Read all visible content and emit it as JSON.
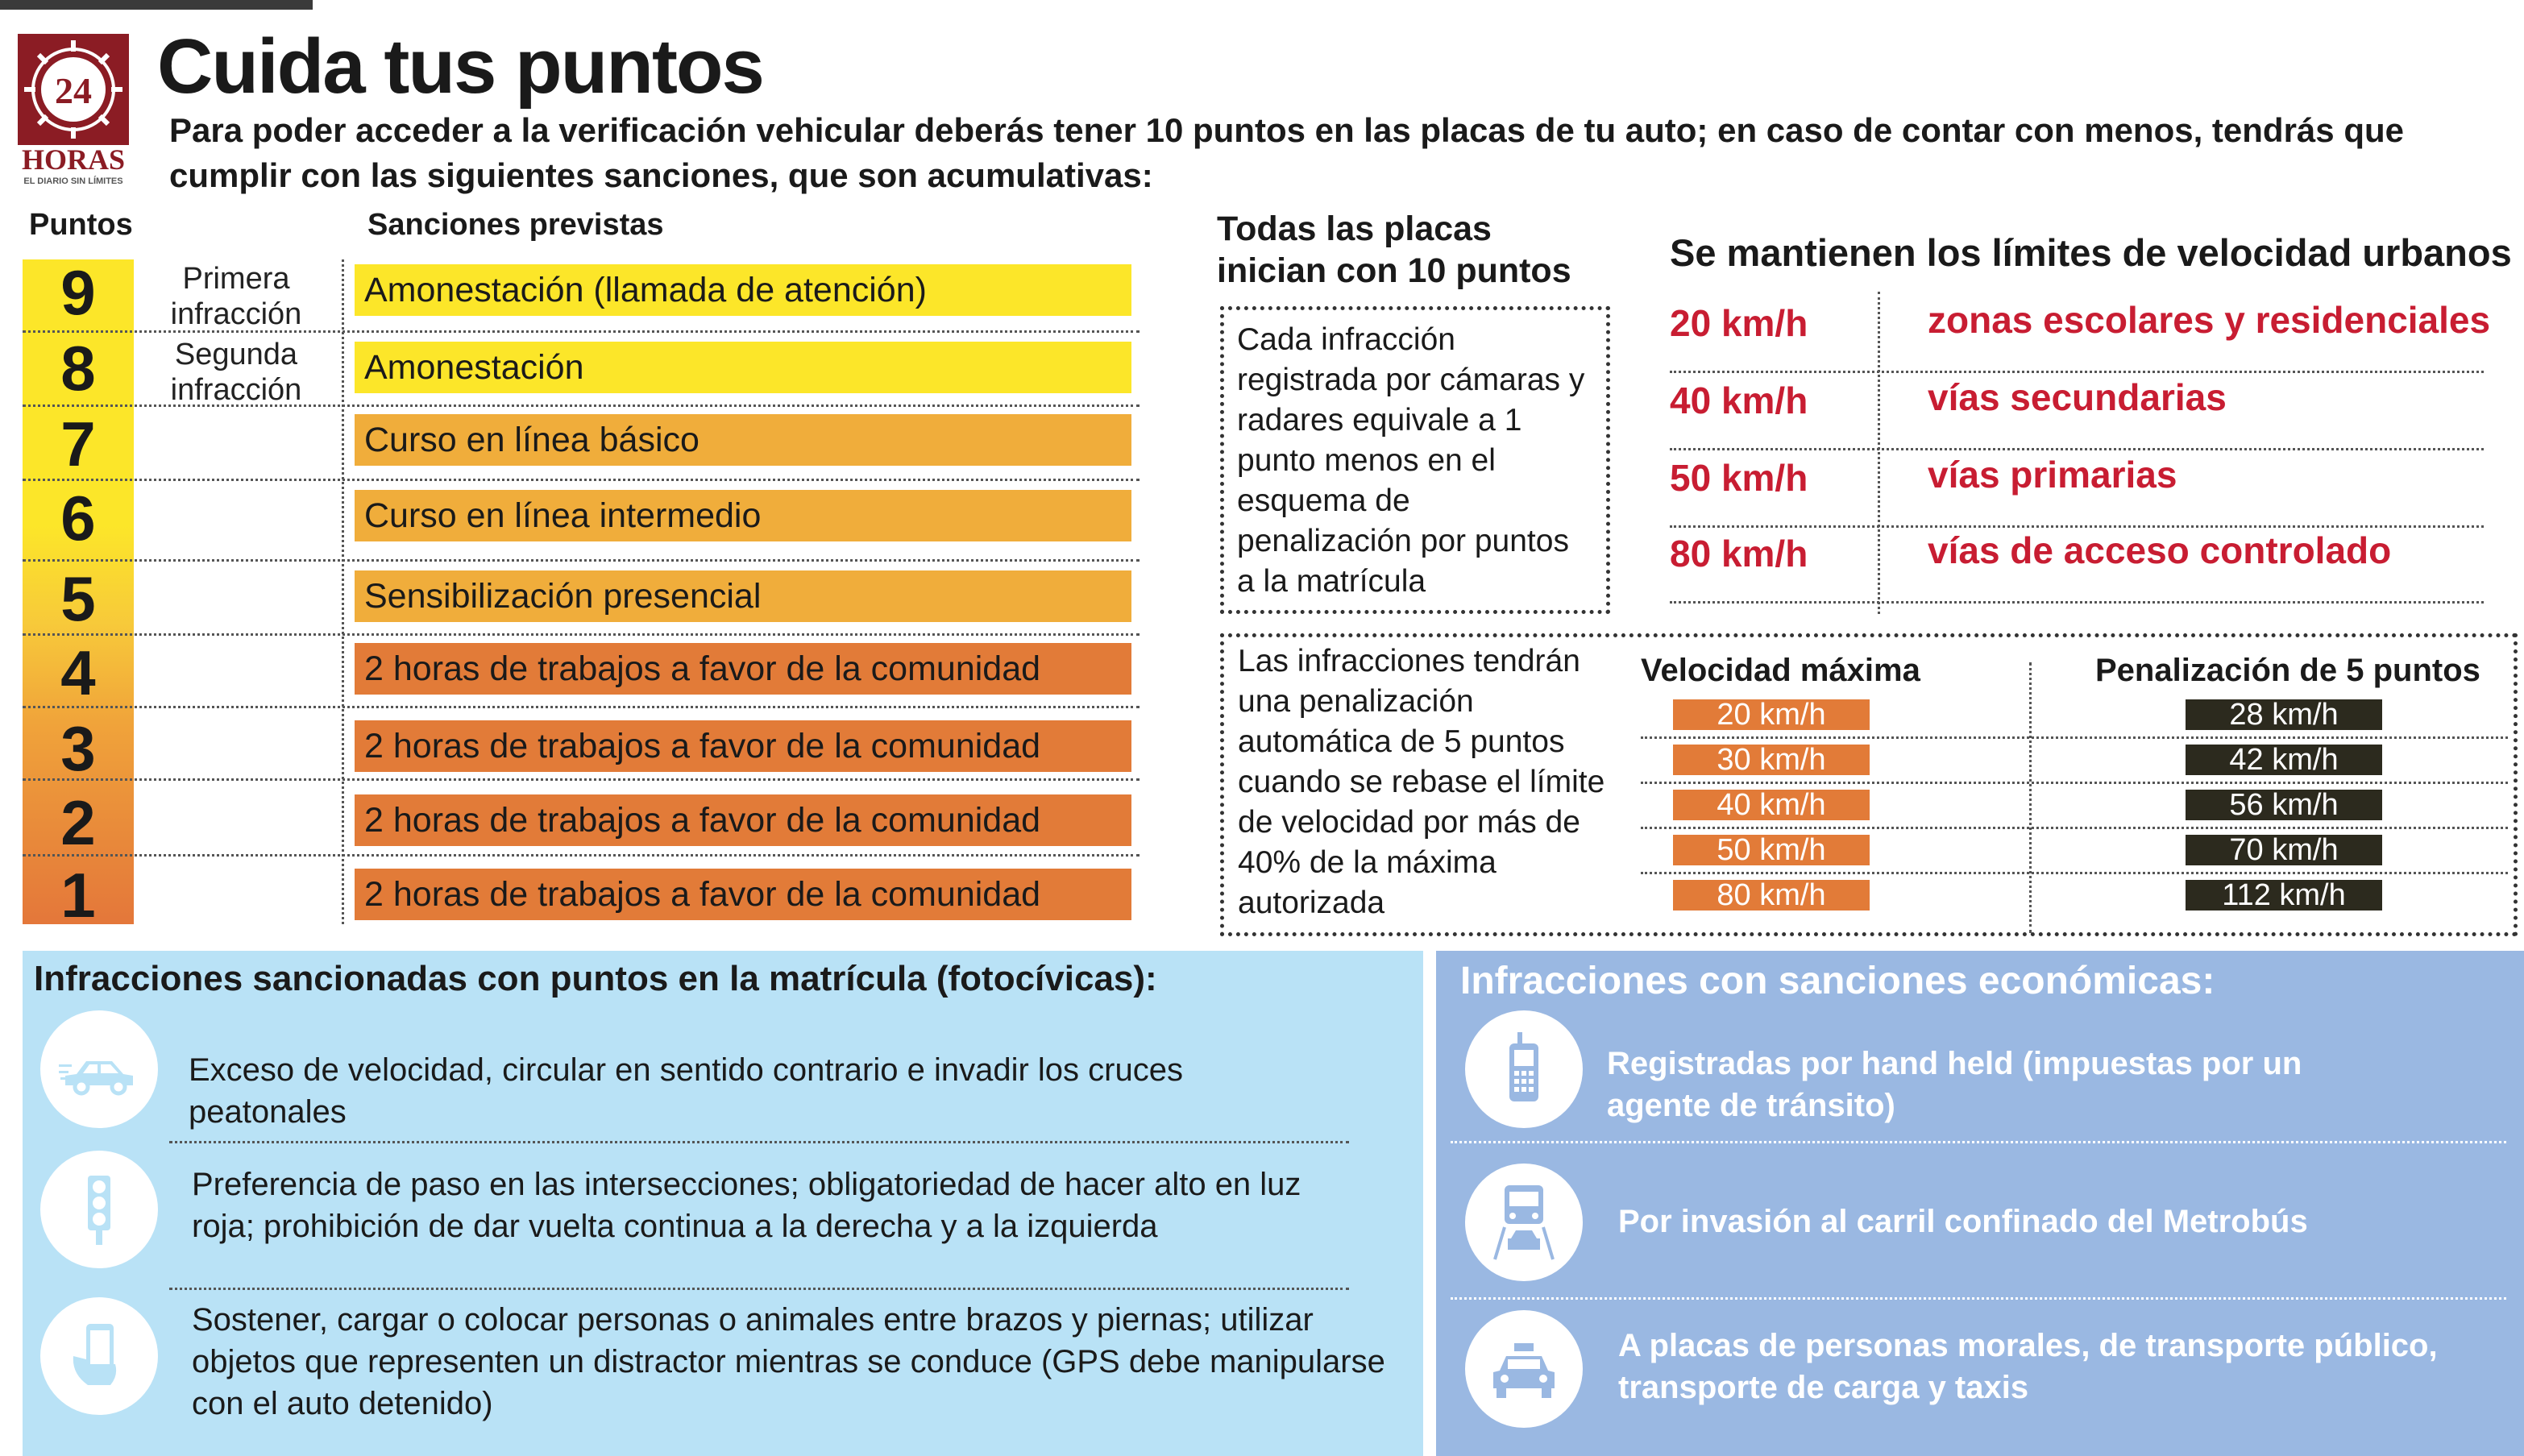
{
  "title": "Cuida tus puntos",
  "logo": {
    "number": "24",
    "word": "HORAS",
    "tagline": "EL DIARIO SIN LÍMITES"
  },
  "intro": "Para poder acceder a la verificación vehicular deberás tener 10 puntos en las placas de tu auto; en caso de contar con menos, tendrás que cumplir con las siguientes sanciones, que son acumulativas:",
  "table": {
    "col_puntos": "Puntos",
    "col_sanciones": "Sanciones previstas",
    "rows": [
      {
        "points": "9",
        "infraction": "Primera infracción",
        "sanction": "Amonestación (llamada de atención)",
        "color": "#fce629"
      },
      {
        "points": "8",
        "infraction": "Segunda infracción",
        "sanction": "Amonestación",
        "color": "#fce629"
      },
      {
        "points": "7",
        "infraction": "",
        "sanction": "Curso en línea básico",
        "color": "#f0ad3b"
      },
      {
        "points": "6",
        "infraction": "",
        "sanction": "Curso en línea intermedio",
        "color": "#f0ad3b"
      },
      {
        "points": "5",
        "infraction": "",
        "sanction": "Sensibilización presencial",
        "color": "#f0ad3b"
      },
      {
        "points": "4",
        "infraction": "",
        "sanction": "2 horas de trabajos a favor de la comunidad",
        "color": "#e27b38"
      },
      {
        "points": "3",
        "infraction": "",
        "sanction": "2 horas de trabajos a favor de la comunidad",
        "color": "#e27b38"
      },
      {
        "points": "2",
        "infraction": "",
        "sanction": "2 horas de trabajos a favor de la comunidad",
        "color": "#e27b38"
      },
      {
        "points": "1",
        "infraction": "",
        "sanction": "2 horas de trabajos a favor de la comunidad",
        "color": "#e27b38"
      }
    ]
  },
  "todas": "Todas las placas inician con 10 puntos",
  "box1": "Cada infracción registrada por cámaras y radares equivale a 1 punto menos en el esquema de penalización por puntos a la matrícula",
  "limits": {
    "title": "Se mantienen los límites de velocidad urbanos",
    "color": "#c81d32",
    "rows": [
      {
        "speed": "20 km/h",
        "desc": "zonas escolares y residenciales"
      },
      {
        "speed": "40 km/h",
        "desc": "vías secundarias"
      },
      {
        "speed": "50 km/h",
        "desc": "vías primarias"
      },
      {
        "speed": "80 km/h",
        "desc": "vías de acceso controlado"
      }
    ]
  },
  "penalty": {
    "text": "Las infracciones tendrán una penalización automática de 5 puntos cuando se rebase el límite de velocidad por más de 40% de la máxima autorizada",
    "col_max": "Velocidad máxima",
    "col_pen": "Penalización de 5 puntos",
    "rows": [
      {
        "max": "20 km/h",
        "pen": "28 km/h"
      },
      {
        "max": "30 km/h",
        "pen": "42 km/h"
      },
      {
        "max": "40 km/h",
        "pen": "56 km/h"
      },
      {
        "max": "50 km/h",
        "pen": "70 km/h"
      },
      {
        "max": "80 km/h",
        "pen": "112 km/h"
      }
    ]
  },
  "panel_left": {
    "title": "Infracciones sancionadas con puntos en la matrícula (fotocívicas):",
    "items": [
      {
        "icon": "speeding-car-icon",
        "text": "Exceso de velocidad, circular en sentido contrario e invadir los cruces peatonales"
      },
      {
        "icon": "traffic-light-icon",
        "text": "Preferencia de paso en las intersecciones; obligatoriedad de hacer alto en luz roja; prohibición de dar vuelta continua a la derecha y a la izquierda"
      },
      {
        "icon": "phone-in-hand-icon",
        "text": "Sostener, cargar o colocar personas o animales entre brazos y piernas; utilizar objetos que representen un distractor mientras se conduce (GPS debe manipularse con el auto detenido)"
      }
    ]
  },
  "panel_right": {
    "title": "Infracciones con sanciones económicas:",
    "items": [
      {
        "icon": "handheld-device-icon",
        "text": "Registradas por hand held (impuestas por un agente de tránsito)"
      },
      {
        "icon": "metrobus-icon",
        "text": "Por invasión al carril confinado del Metrobús"
      },
      {
        "icon": "taxi-icon",
        "text": "A placas de personas morales, de transporte público, transporte de carga y taxis"
      }
    ]
  }
}
